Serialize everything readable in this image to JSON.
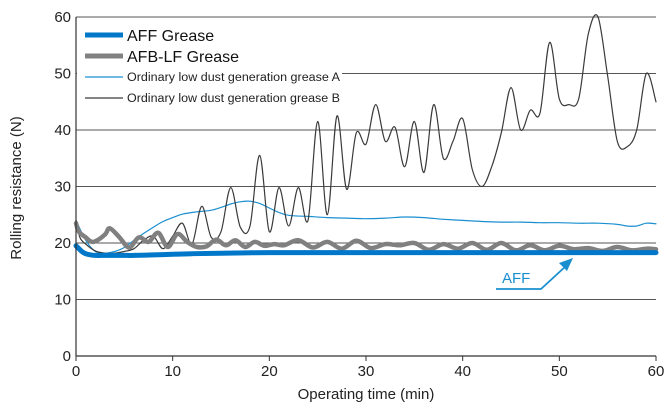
{
  "chart_data": {
    "type": "line",
    "xlabel": "Operating time (min)",
    "ylabel": "Rolling resistance (N)",
    "xlim": [
      0,
      60
    ],
    "ylim": [
      0,
      60
    ],
    "xticks": [
      "0",
      "10",
      "20",
      "30",
      "40",
      "50",
      "60"
    ],
    "yticks": [
      "0",
      "10",
      "20",
      "30",
      "40",
      "50",
      "60"
    ],
    "grid": "horizontal",
    "legend_position": "top-left",
    "annotation": {
      "text": "AFF",
      "color": "#1a8fd0",
      "points_to": {
        "x": 51,
        "y": 18.3
      }
    },
    "series": [
      {
        "name": "AFF Grease",
        "color": "#0077c8",
        "style": "thick",
        "x": [
          0,
          0.3,
          0.6,
          1,
          1.5,
          2,
          3,
          4,
          5,
          6,
          8,
          10,
          12,
          15,
          20,
          25,
          30,
          35,
          40,
          45,
          50,
          55,
          60
        ],
        "y": [
          19.5,
          19.0,
          18.5,
          18.1,
          17.9,
          17.8,
          17.8,
          17.8,
          17.8,
          17.8,
          17.9,
          18.0,
          18.1,
          18.2,
          18.3,
          18.3,
          18.3,
          18.3,
          18.3,
          18.3,
          18.3,
          18.3,
          18.3
        ]
      },
      {
        "name": "AFB-LF Grease",
        "color": "#808080",
        "style": "thick",
        "x": [
          0,
          0.3,
          1,
          1.5,
          2,
          3,
          3.5,
          4.5,
          5.5,
          6.5,
          7.5,
          8.5,
          9.5,
          10.5,
          11.5,
          12.5,
          13.5,
          14.5,
          15.5,
          16.5,
          17.5,
          18.5,
          19.5,
          20.5,
          21.5,
          23,
          24.5,
          26,
          27.5,
          29,
          30.5,
          32,
          33.5,
          35,
          36.5,
          38,
          39.5,
          41,
          42.5,
          44,
          45.5,
          47,
          48.5,
          50,
          51.5,
          53,
          54.5,
          56,
          57.5,
          59,
          60
        ],
        "y": [
          23.5,
          22.0,
          21.0,
          20.3,
          20.3,
          21.5,
          22.6,
          21.0,
          19.2,
          21.0,
          20.2,
          21.8,
          19.3,
          21.6,
          20.2,
          19.3,
          19.4,
          20.6,
          19.6,
          20.5,
          19.3,
          20.2,
          19.5,
          19.8,
          19.6,
          20.5,
          19.2,
          20.2,
          19.0,
          20.4,
          19.1,
          19.8,
          19.6,
          20.0,
          18.8,
          19.8,
          19.0,
          20.0,
          18.8,
          20.0,
          18.7,
          19.6,
          18.7,
          19.5,
          18.9,
          19.1,
          18.6,
          19.3,
          18.7,
          19.0,
          18.9
        ]
      },
      {
        "name": "Ordinary low dust generation grease A",
        "color": "#1a8fd0",
        "style": "thin",
        "x": [
          0,
          1,
          2,
          3,
          4,
          5,
          6,
          7,
          8,
          9,
          10,
          11,
          12,
          13,
          14,
          15,
          16,
          17,
          18,
          19,
          20,
          21,
          22,
          24,
          26,
          28,
          30,
          32,
          34,
          36,
          38,
          40,
          42,
          44,
          46,
          48,
          50,
          52,
          54,
          56,
          57,
          58,
          59,
          60
        ],
        "y": [
          24.0,
          20.5,
          18.5,
          18.2,
          18.5,
          19.2,
          20.5,
          21.7,
          22.8,
          23.8,
          24.5,
          25.1,
          25.4,
          25.6,
          25.8,
          26.3,
          26.9,
          27.3,
          27.4,
          27.0,
          26.2,
          25.4,
          24.9,
          24.7,
          24.5,
          24.4,
          24.3,
          24.4,
          24.6,
          24.5,
          24.2,
          24.0,
          23.8,
          23.7,
          23.7,
          23.6,
          23.6,
          23.5,
          23.5,
          23.3,
          23.0,
          23.0,
          23.5,
          23.4
        ]
      },
      {
        "name": "Ordinary low dust generation grease B",
        "color": "#3a3a3a",
        "style": "thin",
        "x": [
          0,
          0.4,
          1,
          2,
          3,
          4,
          5,
          6,
          7,
          8,
          9,
          10,
          11,
          12,
          13,
          14,
          15,
          16,
          17,
          18,
          19,
          20,
          21,
          22,
          23,
          24,
          25,
          26,
          27,
          28,
          29,
          30,
          31,
          32,
          33,
          34,
          35,
          36,
          37,
          38,
          39,
          40,
          41,
          42,
          43,
          44,
          45,
          46,
          47,
          48,
          49,
          50,
          51,
          52,
          53,
          54,
          55,
          56,
          57,
          58,
          59,
          60
        ],
        "y": [
          24.0,
          21.0,
          19.8,
          18.6,
          18.2,
          18.2,
          18.5,
          19.0,
          20.5,
          21.2,
          19.0,
          21.2,
          23.5,
          19.8,
          26.5,
          21.0,
          22.0,
          29.8,
          22.8,
          23.0,
          35.5,
          22.0,
          29.8,
          23.0,
          29.8,
          24.0,
          41.5,
          25.0,
          42.5,
          29.5,
          39.5,
          37.5,
          44.5,
          38.0,
          40.5,
          33.5,
          41.5,
          32.5,
          44.5,
          35.0,
          38.0,
          42.0,
          33.0,
          30.0,
          33.5,
          39.5,
          47.5,
          40.0,
          43.5,
          43.0,
          55.5,
          45.5,
          44.5,
          45.5,
          57.0,
          60.0,
          49.5,
          38.0,
          37.0,
          40.0,
          50.0,
          45.0
        ]
      }
    ]
  }
}
